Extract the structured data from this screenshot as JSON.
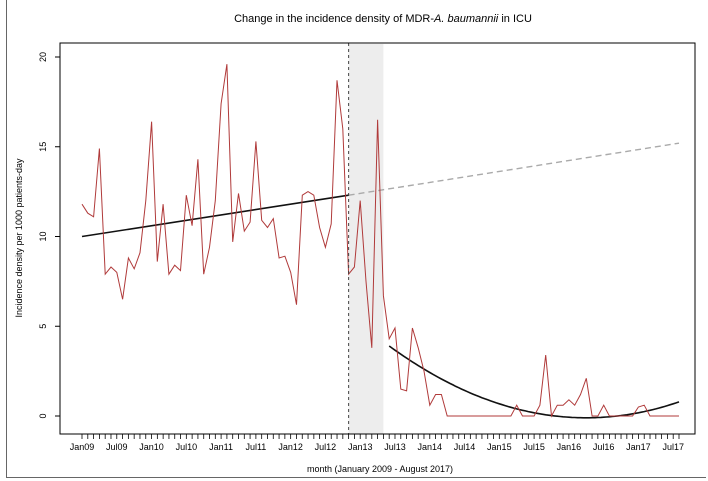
{
  "chart_data": {
    "type": "line",
    "title_prefix": "Change in the incidence density of MDR-",
    "title_italic": "A. baumannii",
    "title_suffix": " in ICU",
    "xlabel": "month (January 2009 - August 2017)",
    "ylabel": "Incidence density per 1000 patients-day",
    "ylim": [
      0,
      21
    ],
    "yticks": [
      0,
      5,
      10,
      15,
      20
    ],
    "x_count": 104,
    "xticks": [
      {
        "i": 0,
        "label": "Jan09"
      },
      {
        "i": 6,
        "label": "Jul09"
      },
      {
        "i": 12,
        "label": "Jan10"
      },
      {
        "i": 18,
        "label": "Jul10"
      },
      {
        "i": 24,
        "label": "Jan11"
      },
      {
        "i": 30,
        "label": "Jul11"
      },
      {
        "i": 36,
        "label": "Jan12"
      },
      {
        "i": 42,
        "label": "Jul12"
      },
      {
        "i": 48,
        "label": "Jan13"
      },
      {
        "i": 54,
        "label": "Jul13"
      },
      {
        "i": 60,
        "label": "Jan14"
      },
      {
        "i": 66,
        "label": "Jul14"
      },
      {
        "i": 72,
        "label": "Jan15"
      },
      {
        "i": 78,
        "label": "Jul15"
      },
      {
        "i": 84,
        "label": "Jan16"
      },
      {
        "i": 90,
        "label": "Jul16"
      },
      {
        "i": 96,
        "label": "Jan17"
      },
      {
        "i": 102,
        "label": "Jul17"
      }
    ],
    "series": [
      {
        "color": "#b03a3a",
        "values": [
          11.8,
          11.3,
          11.1,
          14.9,
          7.9,
          8.3,
          8.0,
          6.5,
          8.8,
          8.2,
          9.1,
          12.0,
          16.4,
          8.6,
          11.8,
          7.9,
          8.4,
          8.1,
          12.3,
          10.6,
          14.3,
          7.9,
          9.4,
          12.0,
          17.4,
          19.6,
          9.7,
          12.4,
          10.3,
          10.8,
          15.3,
          10.9,
          10.5,
          11.0,
          8.8,
          8.9,
          8.0,
          6.2,
          12.3,
          12.5,
          12.3,
          10.5,
          9.4,
          10.7,
          18.7,
          16.0,
          7.9,
          8.3,
          12.0,
          7.5,
          3.8,
          16.5,
          6.7,
          4.3,
          4.9,
          1.5,
          1.4,
          4.9,
          3.8,
          2.5,
          0.6,
          1.2,
          1.2,
          0.0,
          0.0,
          0.0,
          0.0,
          0.0,
          0.0,
          0.0,
          0.0,
          0.0,
          0.0,
          0.0,
          0.0,
          0.6,
          0.0,
          0.0,
          0.0,
          0.6,
          3.4,
          0.0,
          0.6,
          0.6,
          0.9,
          0.6,
          1.2,
          2.1,
          0.0,
          0.0,
          0.6,
          0.0,
          0.0,
          0.0,
          0.0,
          0.0,
          0.5,
          0.6,
          0.0,
          0.0,
          0.0,
          0.0,
          0.0,
          0.0
        ]
      }
    ],
    "trend_pre": {
      "i0": 0,
      "i1": 46,
      "y0": 10.0,
      "y1": 12.3,
      "color": "#111111"
    },
    "trend_counterfactual": {
      "i0": 46,
      "i1": 103,
      "y0": 12.3,
      "y1": 15.2,
      "color": "#aaaaaa"
    },
    "trend_post": {
      "i0": 53,
      "i1": 103,
      "vertex_i": 87,
      "y_start": 3.9,
      "y_vertex": -0.1,
      "color": "#111111"
    },
    "intervention_line_i": 46,
    "shaded_region": {
      "i0": 46,
      "i1": 52,
      "color": "#ededed"
    }
  }
}
